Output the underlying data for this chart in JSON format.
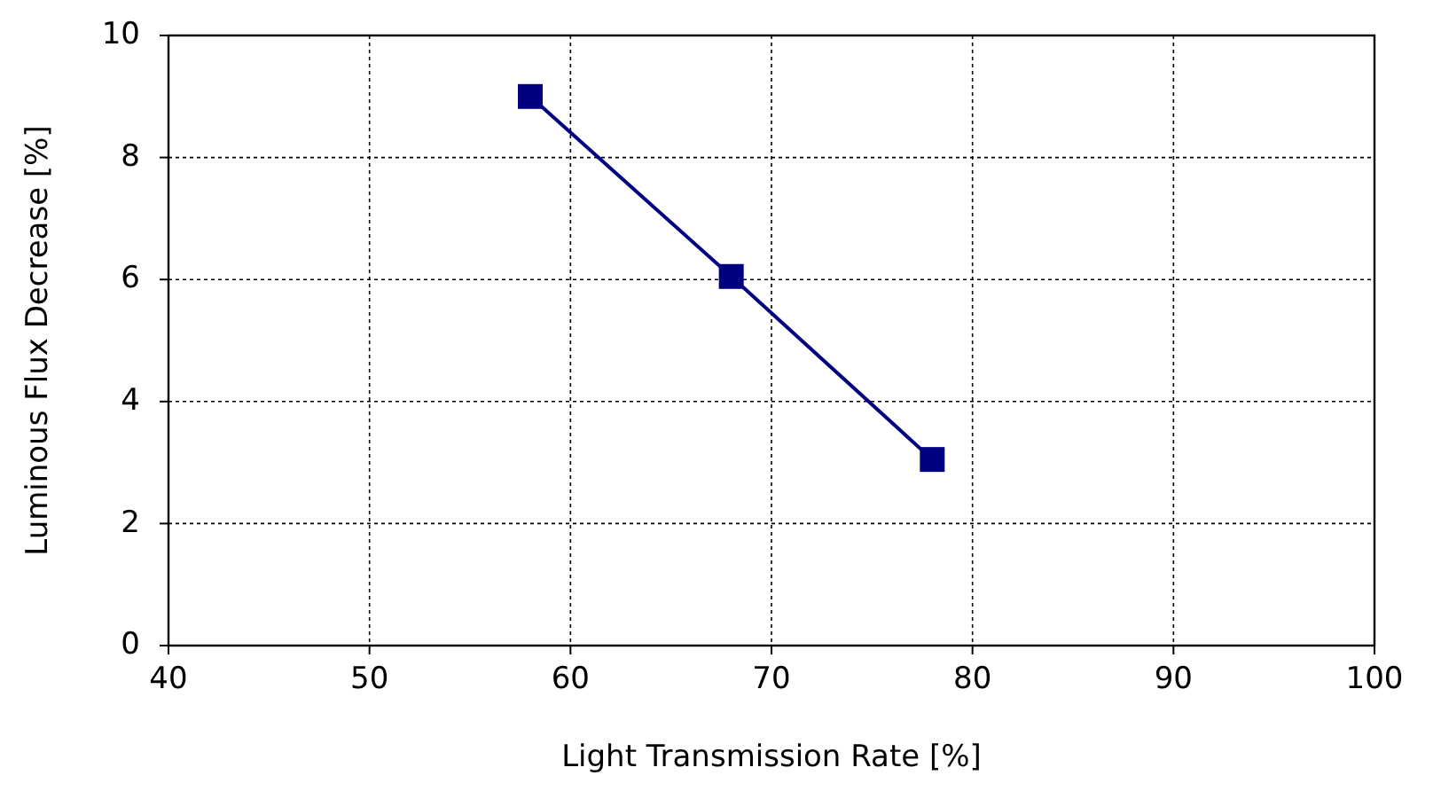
{
  "chart_data": {
    "type": "line",
    "xlabel": "Light Transmission Rate [%]",
    "ylabel": "Luminous Flux Decrease [%]",
    "x": [
      58,
      68,
      78
    ],
    "series": [
      {
        "color": "#000080",
        "values": [
          9,
          6.05,
          3.05
        ]
      }
    ],
    "xlim": [
      40,
      100
    ],
    "xticks": [
      40,
      50,
      60,
      70,
      80,
      90,
      100
    ],
    "ylim": [
      0,
      10
    ],
    "yticks": [
      0,
      2,
      4,
      6,
      8,
      10
    ],
    "grid": true,
    "marker": "square",
    "line_style": "solid"
  }
}
